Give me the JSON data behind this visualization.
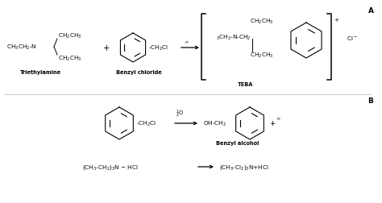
{
  "bg_color": "#ffffff",
  "text_color": "#000000",
  "fig_width": 4.74,
  "fig_height": 2.53,
  "dpi": 100,
  "label_A": "A",
  "label_B": "B",
  "triethylamine_label": "Triethylamine",
  "benzyl_chloride_label": "Benzyl chloride",
  "TEBA_label": "TEBA",
  "benzyl_alcohol_label": "Benzyl alcohol",
  "font_size_main": 5.2,
  "font_size_small": 4.8,
  "font_size_label": 6.5,
  "font_size_bold": 5.2
}
